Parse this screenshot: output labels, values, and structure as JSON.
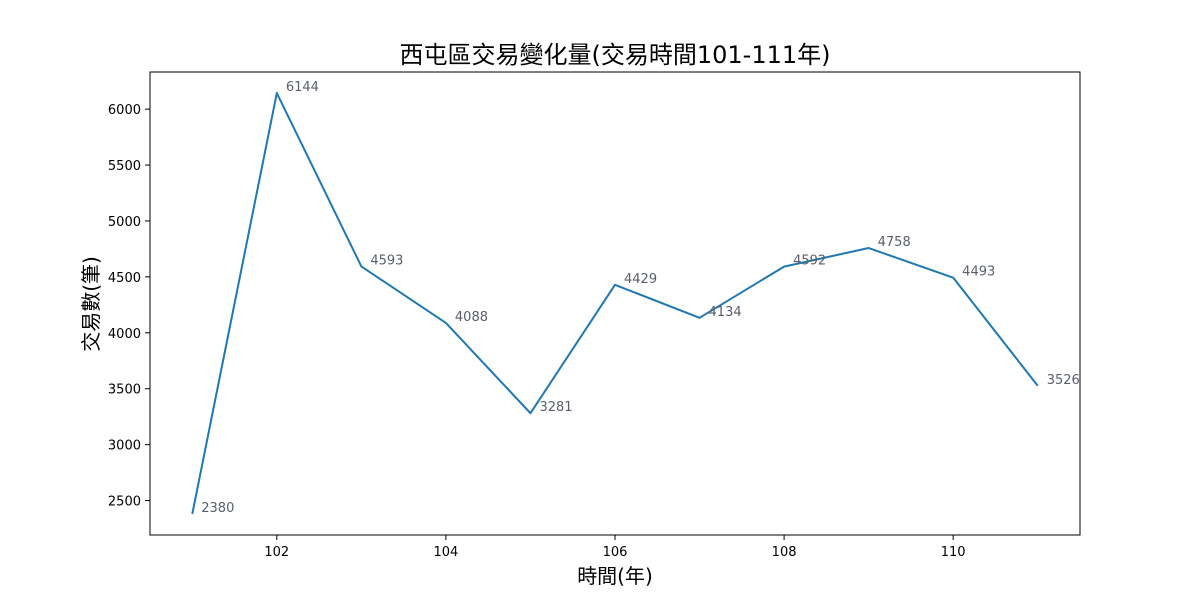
{
  "chart_data": {
    "type": "line",
    "title": "西屯區交易變化量(交易時間101-111年)",
    "xlabel": "時間(年)",
    "ylabel": "交易數(筆)",
    "x": [
      101,
      102,
      103,
      104,
      105,
      106,
      107,
      108,
      109,
      110,
      111
    ],
    "series": [
      {
        "values": [
          2380,
          6144,
          4593,
          4088,
          3281,
          4429,
          4134,
          4592,
          4758,
          4493,
          3526
        ],
        "color": "#1f77b4"
      }
    ],
    "x_ticks": [
      102,
      104,
      106,
      108,
      110
    ],
    "y_ticks": [
      2500,
      3000,
      3500,
      4000,
      4500,
      5000,
      5500,
      6000
    ],
    "xlim": [
      100.5,
      111.5
    ],
    "ylim": [
      2192,
      6332
    ],
    "grid": false,
    "legend": "none",
    "data_labels": true
  }
}
